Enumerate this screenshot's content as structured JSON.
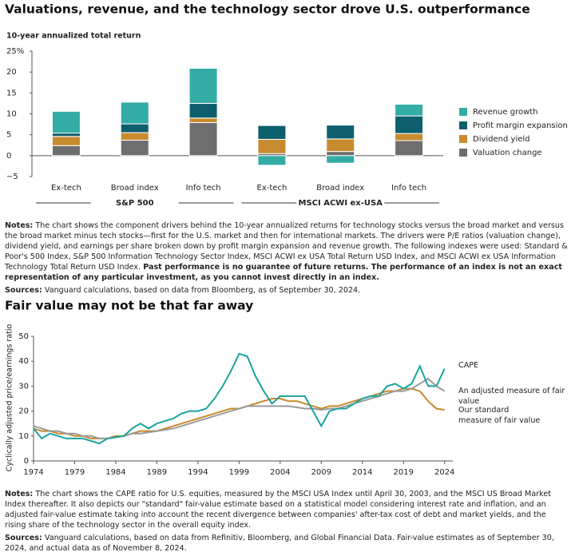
{
  "chart_data": [
    {
      "type": "bar",
      "title": "Valuations, revenue, and the technology sector drove U.S. outperformance",
      "y_label": "10-year annualized total return",
      "categories": [
        "Ex-tech",
        "Broad index",
        "Info tech",
        "Ex-tech",
        "Broad index",
        "Info tech"
      ],
      "group_labels": [
        "S&P 500",
        "MSCI ACWI ex-USA"
      ],
      "series": [
        {
          "name": "Valuation change",
          "color": "#6e6e6e",
          "values": [
            2.4,
            3.7,
            7.9,
            0.5,
            1.0,
            3.6
          ]
        },
        {
          "name": "Dividend yield",
          "color": "#c98b2f",
          "values": [
            2.2,
            1.8,
            1.1,
            3.4,
            3.0,
            1.7
          ]
        },
        {
          "name": "Profit margin expansion",
          "color": "#0e5f6e",
          "values": [
            0.8,
            2.1,
            3.5,
            3.3,
            3.3,
            4.2
          ]
        },
        {
          "name": "Revenue growth",
          "color": "#33aca6",
          "values": [
            5.2,
            5.2,
            8.4,
            -2.3,
            -1.8,
            2.8
          ]
        }
      ],
      "stacked": true,
      "ylim": [
        -5,
        25
      ],
      "yticks": [
        {
          "value": -5,
          "label": "−5"
        },
        0,
        5,
        10,
        15,
        20,
        {
          "value": 25,
          "label": "25%"
        }
      ],
      "grid": false,
      "notes_label": "Notes:",
      "notes_text": "The chart shows the component drivers behind the 10-year annualized returns for technology stocks versus the broad market and versus the broad market minus tech stocks—first for the U.S. market and then for international markets. The drivers were P/E ratios (valuation change), dividend yield, and earnings per share broken down by profit margin expansion and revenue growth. The following indexes were used: Standard & Poor's 500 Index, S&P 500 Information Technology Sector Index, MSCI ACWI ex USA Total Return USD Index, and MSCI ACWI ex USA Information Technology Total Return USD Index.",
      "notes_bold": "Past performance is no guarantee of future returns. The performance of an index is not an exact representation of any particular investment, as you cannot invest directly in an index.",
      "sources_label": "Sources:",
      "sources_text": "Vanguard calculations, based on data from Bloomberg, as of September 30, 2024."
    },
    {
      "type": "line",
      "title": "Fair value may not be that far away",
      "y_label": "Cyclically adjusted price/earnings ratio",
      "x": [
        1974,
        1975,
        1976,
        1977,
        1978,
        1979,
        1980,
        1981,
        1982,
        1983,
        1984,
        1985,
        1986,
        1987,
        1988,
        1989,
        1990,
        1991,
        1992,
        1993,
        1994,
        1995,
        1996,
        1997,
        1998,
        1999,
        2000,
        2001,
        2002,
        2003,
        2004,
        2005,
        2006,
        2007,
        2008,
        2009,
        2010,
        2011,
        2012,
        2013,
        2014,
        2015,
        2016,
        2017,
        2018,
        2019,
        2020,
        2021,
        2022,
        2023,
        2024
      ],
      "series": [
        {
          "name": "CAPE",
          "color": "#1aa3a0",
          "values": [
            13,
            9,
            11,
            10,
            9,
            9,
            9,
            8,
            7,
            9,
            9.5,
            10,
            13,
            15,
            13,
            15,
            16,
            17,
            19,
            20,
            20,
            21,
            25,
            30,
            36,
            43,
            42,
            34,
            28,
            23,
            26,
            26,
            26,
            26,
            20,
            14,
            20,
            21,
            21,
            23,
            25,
            26,
            26,
            30,
            31,
            29,
            31,
            38,
            30,
            30,
            37
          ]
        },
        {
          "name": "An adjusted measure of fair value",
          "color": "#9a9a9a",
          "values": [
            14,
            13,
            12,
            12,
            11,
            11,
            10,
            10,
            9,
            9,
            9.5,
            10,
            11,
            11,
            11.5,
            12,
            12.5,
            13,
            14,
            15,
            16,
            17,
            18,
            19,
            20,
            21,
            22,
            22,
            22,
            22,
            22,
            22,
            21.5,
            21,
            21,
            20.5,
            21,
            21,
            22,
            23,
            24,
            25,
            26,
            27,
            28,
            28,
            29,
            31,
            33,
            30,
            28
          ]
        },
        {
          "name": "Our standard measure of fair value",
          "color": "#c8892b",
          "values": [
            13,
            12,
            12,
            11,
            11,
            10,
            10,
            9,
            9,
            9,
            10,
            10,
            11,
            12,
            12,
            12,
            13,
            14,
            15,
            16,
            17,
            18,
            19,
            20,
            21,
            21,
            22,
            23,
            24,
            25,
            25,
            24,
            24,
            23,
            22,
            21,
            22,
            22,
            23,
            24,
            25,
            26,
            27,
            28,
            28,
            29,
            29,
            28,
            24,
            21,
            20.5
          ]
        }
      ],
      "xlim": [
        1974,
        2025
      ],
      "xticks": [
        1974,
        1979,
        1984,
        1989,
        1994,
        1999,
        2004,
        2009,
        2014,
        2019,
        2024
      ],
      "ylim": [
        0,
        50
      ],
      "yticks": [
        0,
        10,
        20,
        30,
        40,
        50
      ],
      "grid": false,
      "notes_label": "Notes:",
      "notes_text": "The chart shows the CAPE ratio for U.S. equities, measured by the MSCI USA Index until April 30, 2003, and the MSCI US Broad Market Index thereafter. It also depicts our \"standard\" fair-value estimate based on a statistical model considering interest rate and inflation, and an adjusted fair-value estimate taking into account the recent divergence between companies' after-tax cost of debt and market yields, and the rising share of the technology sector in the overall equity index.",
      "sources_label": "Sources:",
      "sources_text": "Vanguard calculations, based on data from Refinitiv, Bloomberg, and Global Financial Data. Fair-value estimates as of September 30, 2024, and actual data as of November 8, 2024."
    }
  ]
}
